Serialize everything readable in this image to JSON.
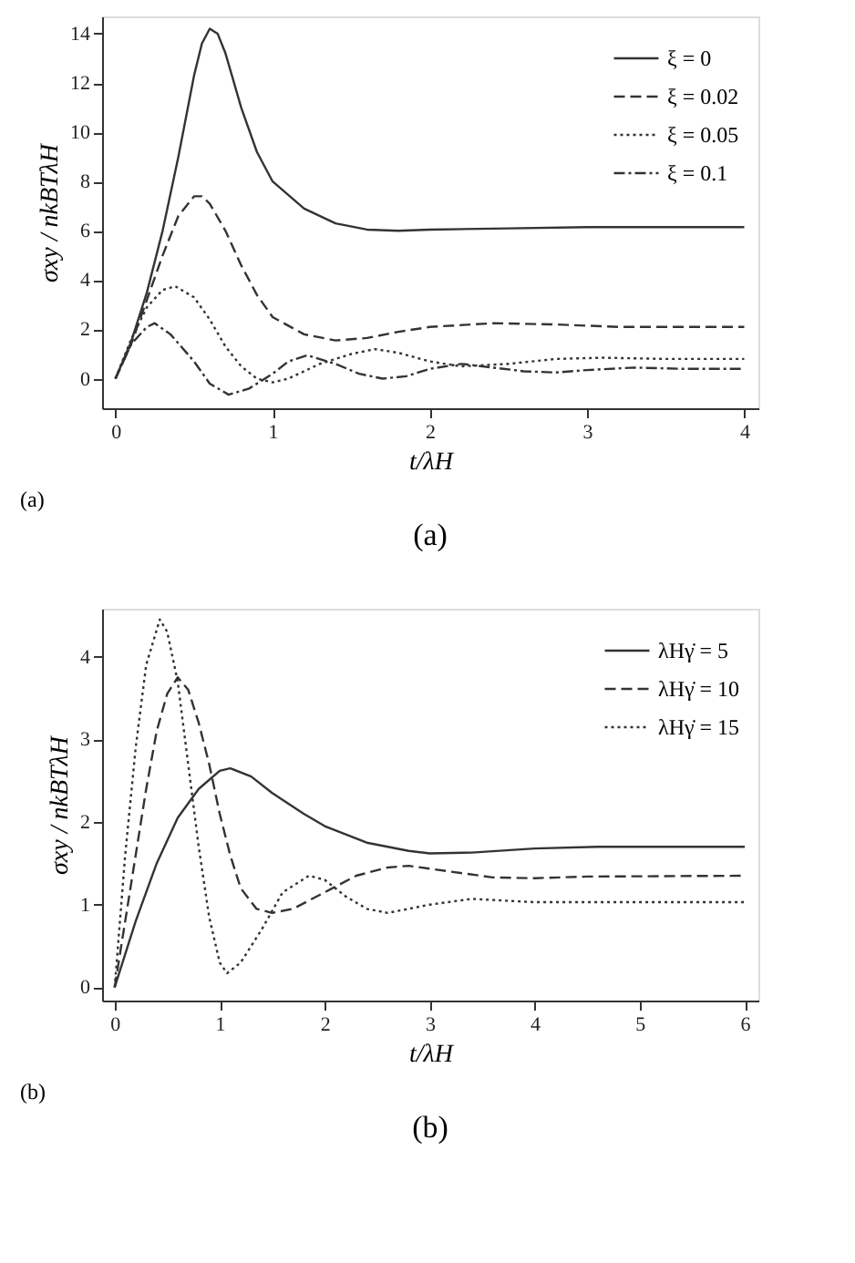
{
  "chart_data": [
    {
      "type": "line",
      "xlabel": "t/λH",
      "ylabel": "σxy / nkBTλH",
      "xlim": [
        -0.085,
        4.09
      ],
      "ylim": [
        -1.2,
        14.7
      ],
      "xticks": [
        0,
        1,
        2,
        3,
        4
      ],
      "yticks": [
        0,
        2,
        4,
        6,
        8,
        10,
        12,
        14
      ],
      "grid": false,
      "legend": "top right",
      "annotations": [
        "(a)",
        "(a)"
      ],
      "series": [
        {
          "name": "ξ = 0",
          "color": "#333333",
          "line_style": "solid",
          "x": [
            0,
            0.1,
            0.2,
            0.3,
            0.4,
            0.5,
            0.55,
            0.6,
            0.65,
            0.7,
            0.8,
            0.9,
            1.0,
            1.2,
            1.4,
            1.6,
            1.8,
            2.0,
            2.5,
            3,
            4
          ],
          "values": [
            0,
            1.5,
            3.5,
            6,
            9,
            12.3,
            13.6,
            14.2,
            14,
            13.2,
            11,
            9.2,
            8,
            6.9,
            6.3,
            6.05,
            6.0,
            6.05,
            6.1,
            6.15,
            6.15
          ]
        },
        {
          "name": "ξ = 0.02",
          "color": "#333333",
          "line_style": "dashed",
          "x": [
            0,
            0.1,
            0.2,
            0.3,
            0.4,
            0.5,
            0.55,
            0.6,
            0.7,
            0.8,
            0.9,
            1.0,
            1.2,
            1.4,
            1.6,
            1.8,
            2.0,
            2.4,
            2.8,
            3.2,
            4
          ],
          "values": [
            0,
            1.4,
            3.2,
            5,
            6.6,
            7.4,
            7.4,
            7.1,
            6,
            4.6,
            3.4,
            2.5,
            1.8,
            1.55,
            1.65,
            1.9,
            2.1,
            2.25,
            2.2,
            2.1,
            2.1
          ]
        },
        {
          "name": "ξ = 0.05",
          "color": "#333333",
          "line_style": "dotted",
          "x": [
            0,
            0.1,
            0.2,
            0.3,
            0.38,
            0.5,
            0.6,
            0.7,
            0.8,
            0.9,
            1.0,
            1.1,
            1.3,
            1.5,
            1.65,
            1.8,
            2.0,
            2.2,
            2.5,
            2.8,
            3.1,
            3.5,
            4
          ],
          "values": [
            0,
            1.6,
            2.9,
            3.6,
            3.75,
            3.3,
            2.4,
            1.3,
            0.5,
            0.0,
            -0.15,
            0.0,
            0.6,
            1.0,
            1.2,
            1.05,
            0.7,
            0.5,
            0.6,
            0.8,
            0.85,
            0.8,
            0.8
          ]
        },
        {
          "name": "ξ = 0.1",
          "color": "#333333",
          "line_style": "dashdot",
          "x": [
            0,
            0.1,
            0.2,
            0.25,
            0.35,
            0.5,
            0.6,
            0.72,
            0.85,
            1.0,
            1.1,
            1.22,
            1.4,
            1.55,
            1.7,
            1.85,
            2.0,
            2.2,
            2.4,
            2.6,
            2.8,
            3.0,
            3.3,
            3.6,
            4
          ],
          "values": [
            0,
            1.4,
            2.1,
            2.25,
            1.8,
            0.7,
            -0.2,
            -0.65,
            -0.4,
            0.2,
            0.7,
            0.95,
            0.6,
            0.2,
            0.0,
            0.1,
            0.4,
            0.6,
            0.45,
            0.3,
            0.25,
            0.35,
            0.45,
            0.4,
            0.4
          ]
        }
      ]
    },
    {
      "type": "line",
      "xlabel": "t/λH",
      "ylabel": "σxy / nkBTλH",
      "xlim": [
        -0.12,
        6.13
      ],
      "ylim": [
        -0.16,
        4.58
      ],
      "xticks": [
        0,
        1,
        2,
        3,
        4,
        5,
        6
      ],
      "yticks": [
        0,
        1,
        2,
        3,
        4
      ],
      "grid": false,
      "legend": "top right",
      "annotations": [
        "(b)",
        "(b)"
      ],
      "series": [
        {
          "name": "λHγ̇ = 5",
          "color": "#333333",
          "line_style": "solid",
          "x": [
            0,
            0.1,
            0.2,
            0.4,
            0.6,
            0.8,
            1.0,
            1.1,
            1.3,
            1.5,
            1.8,
            2.0,
            2.4,
            2.8,
            3.0,
            3.4,
            4,
            4.6,
            5,
            6
          ],
          "values": [
            0,
            0.4,
            0.8,
            1.5,
            2.05,
            2.4,
            2.62,
            2.65,
            2.55,
            2.35,
            2.1,
            1.95,
            1.75,
            1.65,
            1.62,
            1.63,
            1.68,
            1.7,
            1.7,
            1.7
          ]
        },
        {
          "name": "λHγ̇ = 10",
          "color": "#333333",
          "line_style": "dashed",
          "x": [
            0,
            0.1,
            0.2,
            0.3,
            0.4,
            0.5,
            0.6,
            0.7,
            0.8,
            0.9,
            1.0,
            1.1,
            1.2,
            1.35,
            1.5,
            1.7,
            2.0,
            2.3,
            2.6,
            2.8,
            3.2,
            3.6,
            4,
            4.5,
            6
          ],
          "values": [
            0,
            0.8,
            1.6,
            2.4,
            3.1,
            3.55,
            3.75,
            3.6,
            3.2,
            2.7,
            2.1,
            1.6,
            1.2,
            0.95,
            0.9,
            0.95,
            1.15,
            1.35,
            1.45,
            1.47,
            1.4,
            1.33,
            1.32,
            1.34,
            1.35
          ]
        },
        {
          "name": "λHγ̇ = 15",
          "color": "#333333",
          "line_style": "dotted",
          "x": [
            0,
            0.05,
            0.1,
            0.2,
            0.3,
            0.43,
            0.5,
            0.6,
            0.7,
            0.8,
            0.9,
            1.0,
            1.07,
            1.2,
            1.4,
            1.6,
            1.85,
            2.0,
            2.2,
            2.4,
            2.6,
            2.8,
            3.0,
            3.4,
            3.7,
            4,
            6
          ],
          "values": [
            0,
            0.8,
            1.6,
            2.9,
            3.9,
            4.45,
            4.3,
            3.7,
            2.7,
            1.7,
            0.85,
            0.3,
            0.17,
            0.3,
            0.7,
            1.15,
            1.35,
            1.3,
            1.1,
            0.95,
            0.9,
            0.95,
            1.0,
            1.07,
            1.05,
            1.03,
            1.03
          ]
        }
      ]
    }
  ]
}
